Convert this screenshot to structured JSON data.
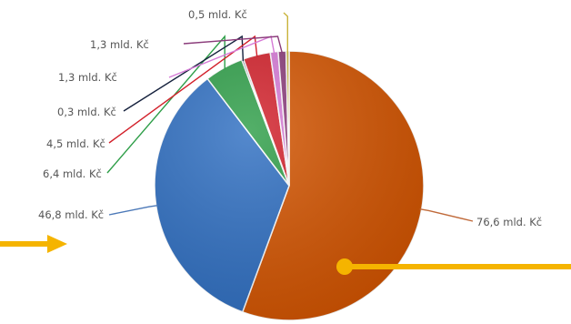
{
  "chart_data": {
    "type": "pie",
    "unit": "mld. Kč",
    "title": "",
    "legend": "none",
    "slices": [
      {
        "value": 76.6,
        "label": "76,6 mld. Kč",
        "color": "#d35400"
      },
      {
        "value": 46.8,
        "label": "46,8 mld. Kč",
        "color": "#2f6fc2"
      },
      {
        "value": 6.4,
        "label": "6,4 mld. Kč",
        "color": "#2e9e48"
      },
      {
        "value": 0.3,
        "label": "0,3 mld. Kč",
        "color": "#15213d"
      },
      {
        "value": 4.5,
        "label": "4,5 mld. Kč",
        "color": "#d2202a"
      },
      {
        "value": 1.3,
        "label": "1,3 mld. Kč",
        "color": "#d67ad6"
      },
      {
        "value": 1.3,
        "label": "1,3 mld. Kč",
        "color": "#8a3b7a"
      },
      {
        "value": 0.5,
        "label": "0,5 mld. Kč",
        "color": "#c9b33a"
      }
    ]
  },
  "colors": {
    "arrow": "#f5b400",
    "leader_default": "#333333"
  }
}
